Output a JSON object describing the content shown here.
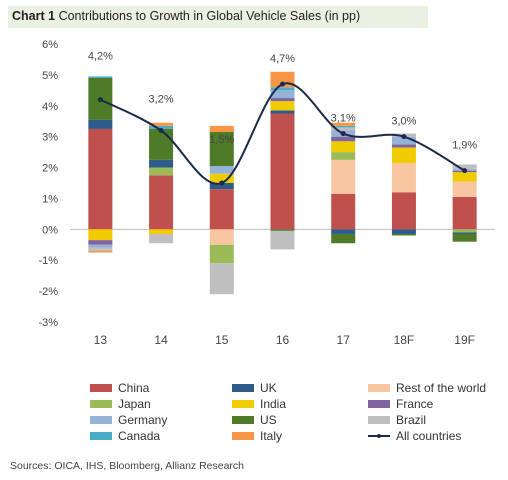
{
  "title": {
    "prefix": "Chart 1",
    "text": "Contributions to Growth in Global Vehicle Sales (in pp)"
  },
  "source": "Sources: OICA, IHS, Bloomberg, Allianz Research",
  "chart_data": {
    "type": "bar",
    "stacked": true,
    "categories": [
      "13",
      "14",
      "15",
      "16",
      "17",
      "18F",
      "19F"
    ],
    "ylim": [
      -3,
      6
    ],
    "yticks": [
      "-3%",
      "-2%",
      "-1%",
      "0%",
      "1%",
      "2%",
      "3%",
      "4%",
      "5%",
      "6%"
    ],
    "series": [
      {
        "name": "China",
        "color": "#c0504d",
        "values": [
          3.25,
          1.75,
          1.3,
          3.75,
          1.15,
          1.2,
          1.05
        ]
      },
      {
        "name": "Rest of the world",
        "color": "#f8c6a0",
        "values": [
          0.0,
          0.0,
          -0.5,
          0.0,
          1.1,
          0.95,
          0.5
        ]
      },
      {
        "name": "Japan",
        "color": "#9bbb59",
        "values": [
          0.0,
          0.25,
          -0.6,
          0.0,
          0.25,
          0.0,
          -0.1
        ]
      },
      {
        "name": "UK",
        "color": "#2e5c8a",
        "values": [
          0.3,
          0.25,
          0.2,
          0.1,
          -0.15,
          -0.15,
          -0.05
        ]
      },
      {
        "name": "India",
        "color": "#f0cc00",
        "values": [
          -0.35,
          -0.15,
          0.3,
          0.3,
          0.35,
          0.5,
          0.3
        ]
      },
      {
        "name": "France",
        "color": "#8064a2",
        "values": [
          -0.15,
          0.0,
          0.0,
          0.1,
          0.15,
          0.1,
          0.05
        ]
      },
      {
        "name": "Germany",
        "color": "#95b3d7",
        "values": [
          -0.1,
          0.0,
          0.25,
          0.25,
          0.2,
          0.25,
          0.05
        ]
      },
      {
        "name": "US",
        "color": "#4f7a28",
        "values": [
          1.35,
          1.0,
          1.1,
          -0.05,
          -0.3,
          -0.05,
          -0.25
        ]
      },
      {
        "name": "Brazil",
        "color": "#bfbfbf",
        "values": [
          -0.1,
          -0.3,
          -1.0,
          -0.6,
          0.1,
          0.1,
          0.15
        ]
      },
      {
        "name": "Canada",
        "color": "#4bacc6",
        "values": [
          0.05,
          0.1,
          0.0,
          0.1,
          0.05,
          0.0,
          0.0
        ]
      },
      {
        "name": "Italy",
        "color": "#f79646",
        "values": [
          -0.05,
          0.1,
          0.2,
          0.5,
          0.1,
          0.0,
          0.0
        ]
      }
    ],
    "line": {
      "name": "All countries",
      "color": "#1c2a4a",
      "values": [
        4.2,
        3.2,
        1.5,
        4.7,
        3.1,
        3.0,
        1.9
      ],
      "labels": [
        "4,2%",
        "3,2%",
        "1,5%",
        "4,7%",
        "3,1%",
        "3,0%",
        "1,9%"
      ]
    },
    "legend_order": [
      "China",
      "Japan",
      "Germany",
      "Canada",
      "UK",
      "India",
      "US",
      "Italy",
      "Rest of the world",
      "France",
      "Brazil",
      "All countries"
    ],
    "legend_position": "bottom",
    "grid": false
  }
}
